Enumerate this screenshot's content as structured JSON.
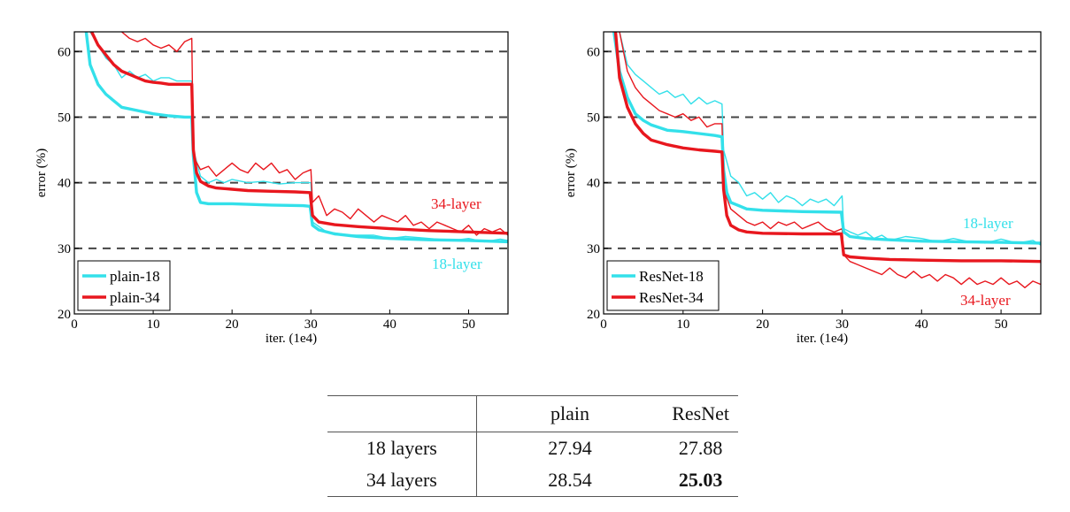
{
  "chart_data": [
    {
      "type": "line",
      "xlabel": "iter. (1e4)",
      "ylabel": "error (%)",
      "xlim": [
        0,
        55
      ],
      "ylim": [
        20,
        63
      ],
      "xticks": [
        0,
        10,
        20,
        30,
        40,
        50
      ],
      "yticks": [
        20,
        30,
        40,
        50,
        60
      ],
      "grid": "dashed horizontal at 30, 40, 50, 60",
      "legend_position": "lower-left",
      "legend": [
        "plain-18",
        "plain-34"
      ],
      "annotations": [
        {
          "text": "34-layer",
          "color": "#e8171e"
        },
        {
          "text": "18-layer",
          "color": "#33e0ea"
        }
      ],
      "series": [
        {
          "name": "plain-18",
          "role": "val",
          "color": "#33e0ea",
          "x": [
            1.5,
            2,
            3,
            4,
            5,
            6,
            8,
            10,
            12,
            14,
            14.9,
            15.1,
            15.5,
            16,
            17,
            20,
            25,
            29,
            29.9,
            30.2,
            31,
            33,
            36,
            40,
            45,
            50,
            55
          ],
          "y": [
            63,
            58,
            55,
            53.5,
            52.5,
            51.5,
            51,
            50.5,
            50.2,
            50,
            50,
            44,
            38.5,
            37,
            36.8,
            36.8,
            36.6,
            36.5,
            36.4,
            33.5,
            32.8,
            32.2,
            31.8,
            31.5,
            31.3,
            31.2,
            31
          ]
        },
        {
          "name": "plain-18",
          "role": "train",
          "color": "#33e0ea",
          "x": [
            2,
            3,
            4,
            5,
            6,
            7,
            8,
            9,
            10,
            11,
            12,
            13,
            14,
            14.9,
            15.1,
            16,
            17,
            18,
            19,
            20,
            22,
            24,
            26,
            28,
            30,
            30.2,
            32,
            35,
            38,
            40,
            42,
            45,
            48,
            50,
            52,
            54,
            55
          ],
          "y": [
            63,
            61,
            59,
            58,
            56,
            57,
            56,
            56.5,
            55.5,
            56,
            56,
            55.5,
            55.5,
            55.5,
            45,
            41,
            40,
            40.5,
            40,
            40.5,
            40,
            40.2,
            39.8,
            40,
            40,
            34,
            32.5,
            32,
            32,
            31.5,
            31.8,
            31.5,
            31.2,
            31.5,
            31,
            31.4,
            31.2
          ]
        },
        {
          "name": "plain-34",
          "role": "val",
          "color": "#e8171e",
          "x": [
            2.2,
            3,
            4,
            5,
            6,
            7,
            8,
            9,
            10,
            11,
            12,
            13,
            14,
            14.9,
            15.1,
            15.5,
            16,
            17,
            18,
            20,
            22,
            25,
            28,
            29.9,
            30.2,
            31,
            33,
            36,
            40,
            45,
            50,
            55
          ],
          "y": [
            63,
            61,
            59.5,
            58,
            57,
            56.5,
            56,
            55.5,
            55.3,
            55.2,
            55,
            55,
            55,
            55,
            45,
            41.5,
            40.2,
            39.5,
            39.2,
            39,
            38.8,
            38.7,
            38.6,
            38.5,
            35,
            34,
            33.6,
            33.3,
            33,
            32.7,
            32.5,
            32.3
          ]
        },
        {
          "name": "plain-34",
          "role": "train",
          "color": "#e8171e",
          "x": [
            6,
            7,
            8,
            9,
            10,
            11,
            12,
            13,
            14,
            14.9,
            15.1,
            16,
            17,
            18,
            19,
            20,
            21,
            22,
            23,
            24,
            25,
            26,
            27,
            28,
            29,
            30,
            30.2,
            31,
            32,
            33,
            34,
            35,
            36,
            37,
            38,
            39,
            40,
            41,
            42,
            43,
            44,
            45,
            46,
            47,
            48,
            49,
            50,
            51,
            52,
            53,
            54,
            55
          ],
          "y": [
            63,
            62,
            61.5,
            62,
            61,
            60.5,
            61,
            60,
            61.5,
            62,
            44,
            42,
            42.5,
            41,
            42,
            43,
            42,
            41.5,
            43,
            42,
            43,
            41.5,
            42,
            40.5,
            41.5,
            42,
            37,
            38,
            35,
            36,
            35.5,
            34.5,
            36,
            35,
            34,
            35,
            34.5,
            34,
            35,
            33.5,
            34,
            33,
            34,
            33.5,
            33,
            32.5,
            33.5,
            32,
            33,
            32.5,
            33,
            32
          ]
        }
      ]
    },
    {
      "type": "line",
      "xlabel": "iter. (1e4)",
      "ylabel": "error (%)",
      "xlim": [
        0,
        55
      ],
      "ylim": [
        20,
        63
      ],
      "xticks": [
        0,
        10,
        20,
        30,
        40,
        50
      ],
      "yticks": [
        20,
        30,
        40,
        50,
        60
      ],
      "grid": "dashed horizontal at 30, 40, 50, 60",
      "legend_position": "lower-left",
      "legend": [
        "ResNet-18",
        "ResNet-34"
      ],
      "annotations": [
        {
          "text": "18-layer",
          "color": "#33e0ea"
        },
        {
          "text": "34-layer",
          "color": "#e8171e"
        }
      ],
      "series": [
        {
          "name": "ResNet-18",
          "role": "val",
          "color": "#33e0ea",
          "x": [
            1.3,
            2,
            3,
            4,
            5,
            6,
            8,
            10,
            12,
            14,
            14.9,
            15.1,
            15.5,
            16,
            17,
            18,
            20,
            25,
            29.9,
            30.2,
            31,
            33,
            36,
            40,
            45,
            50,
            55
          ],
          "y": [
            63,
            57,
            53,
            50.5,
            49.5,
            48.8,
            48,
            47.8,
            47.5,
            47.2,
            47,
            42,
            38.5,
            37,
            36.5,
            36,
            35.8,
            35.6,
            35.5,
            32.5,
            31.8,
            31.5,
            31.3,
            31.1,
            31,
            30.9,
            30.8
          ]
        },
        {
          "name": "ResNet-18",
          "role": "train",
          "color": "#33e0ea",
          "x": [
            2,
            3,
            4,
            5,
            6,
            7,
            8,
            9,
            10,
            11,
            12,
            13,
            14,
            14.9,
            15.1,
            16,
            17,
            18,
            19,
            20,
            21,
            22,
            23,
            24,
            25,
            26,
            27,
            28,
            29,
            30,
            30.2,
            31,
            32,
            33,
            34,
            35,
            36,
            38,
            40,
            42,
            44,
            46,
            48,
            50,
            52,
            54,
            55
          ],
          "y": [
            63,
            58,
            56.5,
            55.5,
            54.5,
            53.5,
            54,
            53,
            53.5,
            52,
            53,
            52,
            52.5,
            52,
            45,
            41,
            40,
            38,
            38.5,
            37.5,
            38.5,
            37,
            38,
            37.5,
            36.5,
            37.5,
            37,
            37.5,
            36.5,
            38,
            33,
            32.5,
            32,
            32.5,
            31.5,
            32,
            31.2,
            31.8,
            31.5,
            31,
            31.5,
            31,
            30.8,
            31.4,
            30.8,
            31.2,
            30.5
          ]
        },
        {
          "name": "ResNet-34",
          "role": "val",
          "color": "#e8171e",
          "x": [
            1.5,
            2,
            3,
            4,
            5,
            6,
            8,
            10,
            12,
            14,
            14.9,
            15.1,
            15.5,
            16,
            17,
            18,
            20,
            25,
            29.9,
            30.2,
            31,
            33,
            36,
            40,
            45,
            50,
            55
          ],
          "y": [
            63,
            56,
            51.5,
            49,
            47.5,
            46.5,
            45.8,
            45.3,
            45,
            44.8,
            44.7,
            39,
            35,
            33.5,
            32.8,
            32.5,
            32.3,
            32.2,
            32.2,
            29,
            28.7,
            28.5,
            28.3,
            28.2,
            28.1,
            28.1,
            28
          ]
        },
        {
          "name": "ResNet-34",
          "role": "train",
          "color": "#e8171e",
          "x": [
            2,
            3,
            4,
            5,
            6,
            7,
            8,
            9,
            10,
            11,
            12,
            13,
            14,
            14.9,
            15.1,
            16,
            17,
            18,
            19,
            20,
            21,
            22,
            23,
            24,
            25,
            26,
            27,
            28,
            29,
            30,
            30.2,
            31,
            32,
            33,
            34,
            35,
            36,
            37,
            38,
            39,
            40,
            41,
            42,
            43,
            44,
            45,
            46,
            47,
            48,
            49,
            50,
            51,
            52,
            53,
            54,
            55
          ],
          "y": [
            63,
            57,
            54.5,
            53,
            52,
            51,
            50.5,
            50,
            50.5,
            49.5,
            50,
            48.5,
            49,
            49,
            39,
            36,
            35,
            34,
            33.5,
            34,
            33,
            34,
            33.5,
            34,
            33,
            33.5,
            34,
            33,
            32.5,
            33,
            29,
            28,
            27.5,
            27,
            26.5,
            26,
            27,
            26,
            25.5,
            26.5,
            25.5,
            26,
            25,
            26,
            25.5,
            24.5,
            25.5,
            24.5,
            25,
            24.5,
            25.5,
            24.5,
            25,
            24,
            25,
            24.5
          ]
        }
      ]
    },
    {
      "type": "table",
      "columns": [
        "",
        "plain",
        "ResNet"
      ],
      "rows": [
        {
          "label": "18 layers",
          "plain": "27.94",
          "resnet": "27.88"
        },
        {
          "label": "34 layers",
          "plain": "28.54",
          "resnet": "25.03"
        }
      ]
    }
  ]
}
